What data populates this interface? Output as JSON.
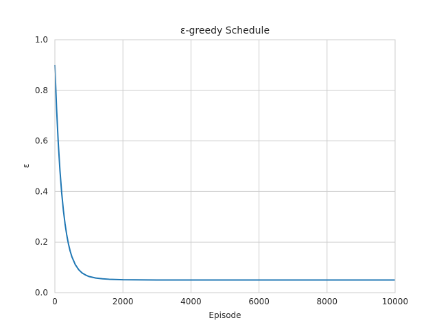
{
  "chart_data": {
    "type": "line",
    "title": "ε-greedy Schedule",
    "xlabel": "Episode",
    "ylabel": "ε",
    "xlim": [
      0,
      10000
    ],
    "ylim": [
      0.0,
      1.0
    ],
    "xticks": [
      0,
      2000,
      4000,
      6000,
      8000,
      10000
    ],
    "xtick_labels": [
      "0",
      "2000",
      "4000",
      "6000",
      "8000",
      "10000"
    ],
    "yticks": [
      0.0,
      0.2,
      0.4,
      0.6,
      0.8,
      1.0
    ],
    "ytick_labels": [
      "0.0",
      "0.2",
      "0.4",
      "0.6",
      "0.8",
      "1.0"
    ],
    "grid": true,
    "line_color": "#1f77b4",
    "grid_color": "#cccccc",
    "series": [
      {
        "x": [
          0,
          50,
          100,
          150,
          200,
          250,
          300,
          350,
          400,
          450,
          500,
          600,
          700,
          800,
          900,
          1000,
          1200,
          1400,
          1600,
          2000,
          3000,
          4000,
          5000,
          6000,
          7000,
          8000,
          9000,
          10000
        ],
        "y": [
          0.9,
          0.728,
          0.591,
          0.482,
          0.395,
          0.326,
          0.271,
          0.227,
          0.192,
          0.164,
          0.142,
          0.111,
          0.091,
          0.078,
          0.07,
          0.064,
          0.058,
          0.055,
          0.053,
          0.051,
          0.05,
          0.05,
          0.05,
          0.05,
          0.05,
          0.05,
          0.05,
          0.05
        ]
      }
    ]
  }
}
